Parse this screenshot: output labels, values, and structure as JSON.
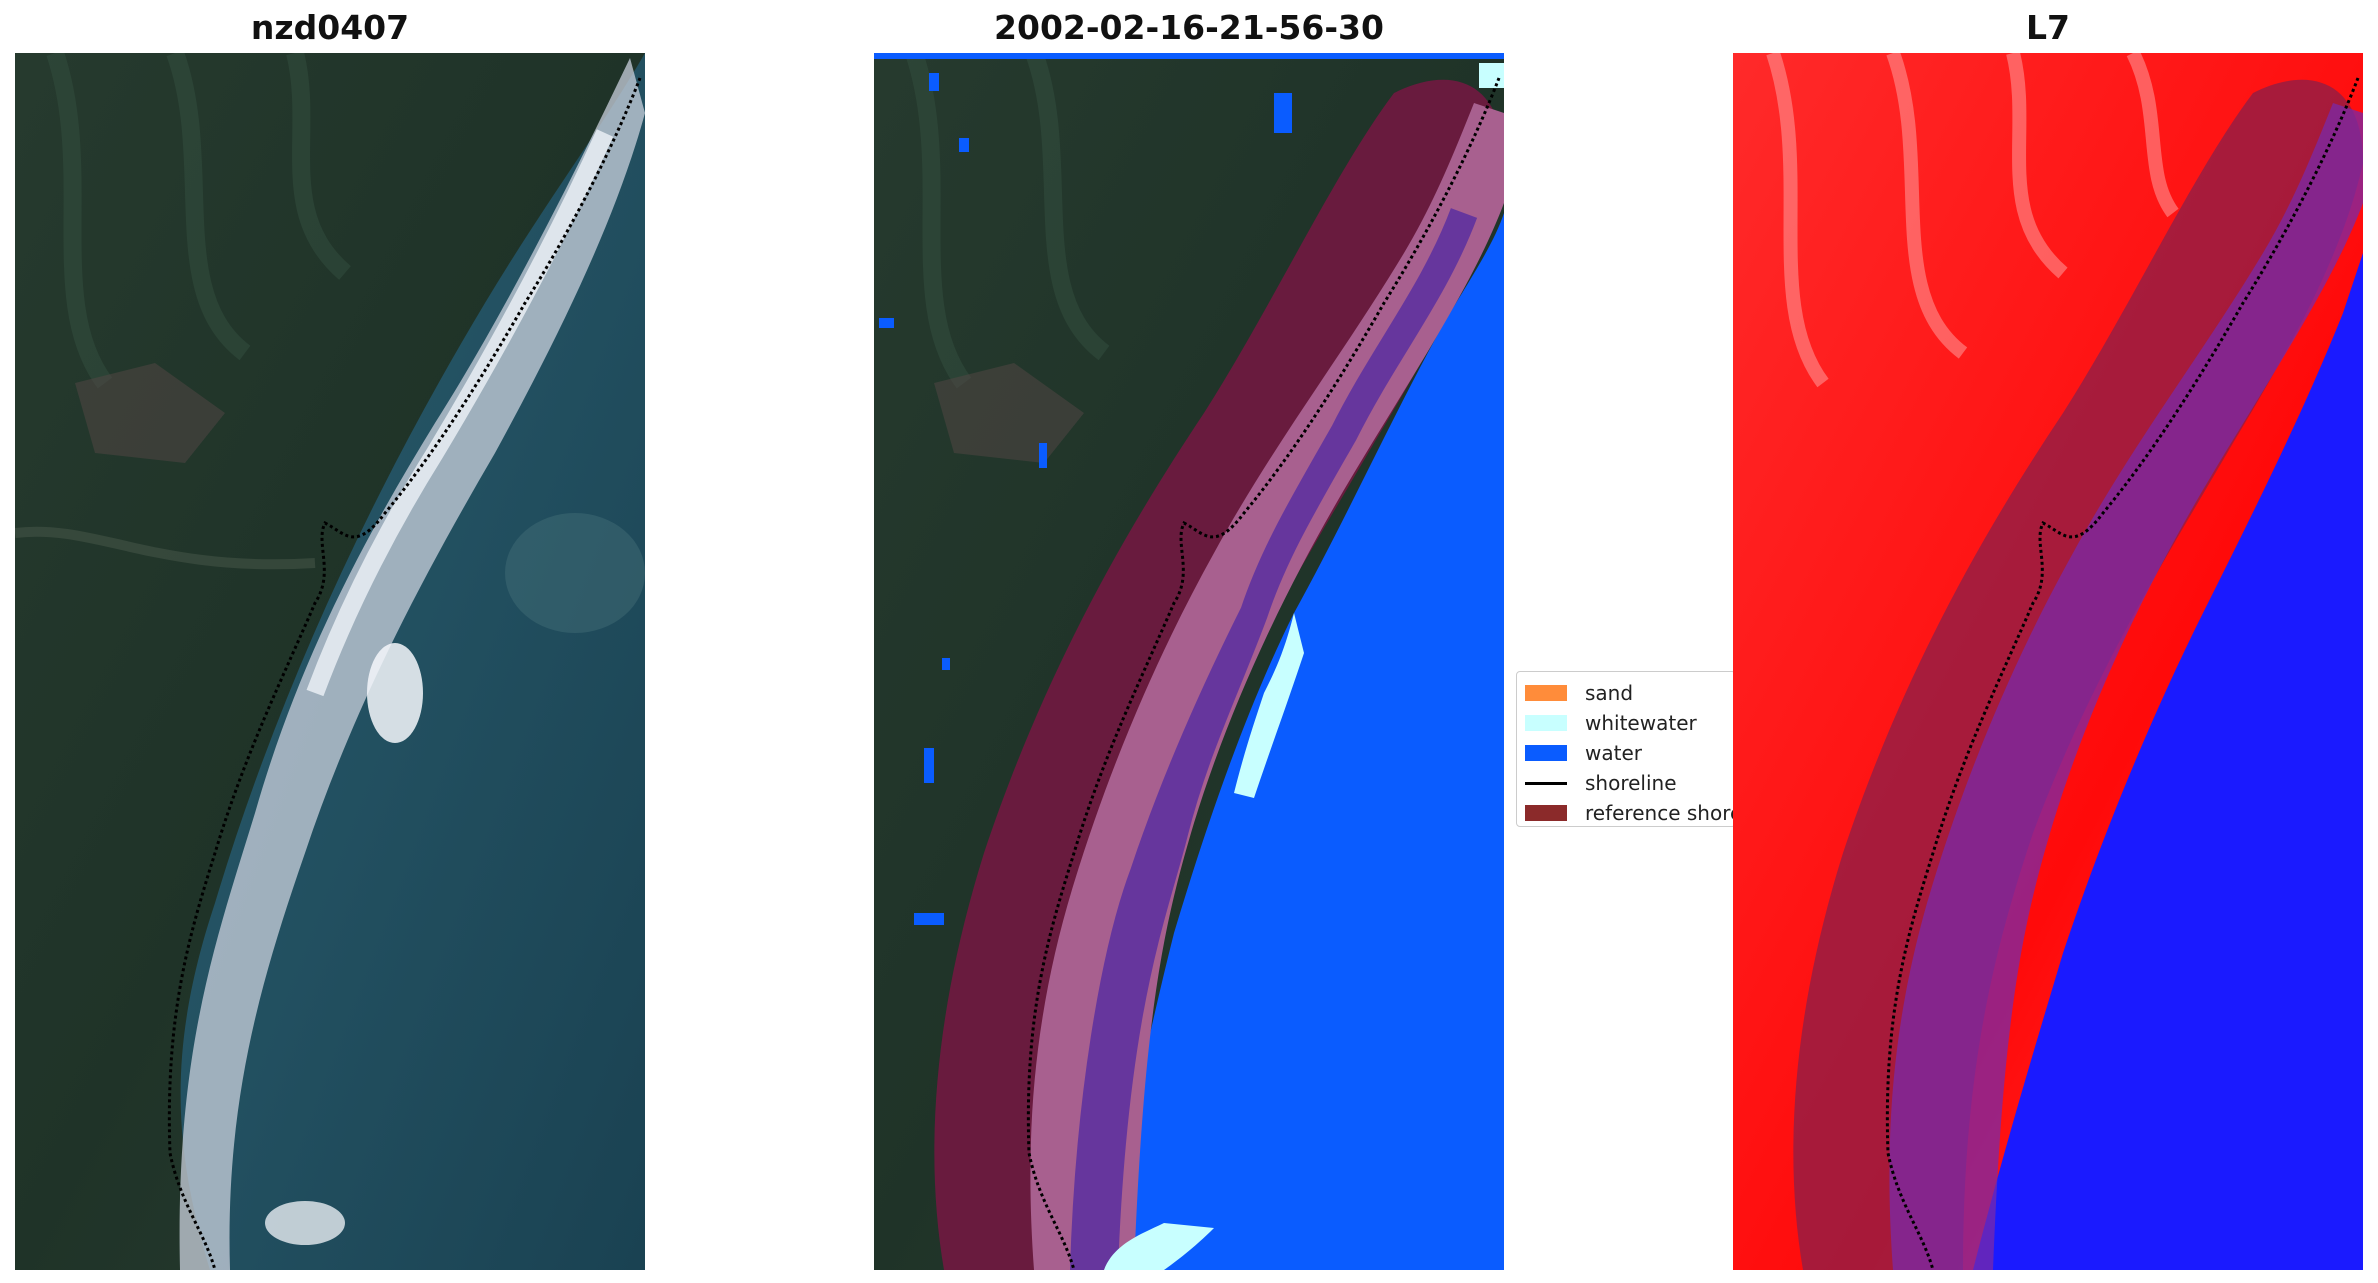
{
  "panels": {
    "rgb": {
      "title": "nzd0407"
    },
    "classified": {
      "title": "2002-02-16-21-56-30"
    },
    "index": {
      "title": "L7"
    }
  },
  "legend": {
    "items": [
      {
        "label": "sand",
        "color": "#ff8c3a",
        "kind": "patch"
      },
      {
        "label": "whitewater",
        "color": "#c8ffff",
        "kind": "patch"
      },
      {
        "label": "water",
        "color": "#0a5cff",
        "kind": "patch"
      },
      {
        "label": "shoreline",
        "color": "#000000",
        "kind": "line"
      },
      {
        "label": "reference shoreline buffer",
        "color": "#8b2a2a",
        "kind": "patch"
      }
    ]
  },
  "colors": {
    "vegetation_dark": "#1f3328",
    "vegetation_mid": "#2c4536",
    "ocean": "#1e4a5c",
    "surf": "#d8dde6",
    "water_class": "#0a5cff",
    "buffer": "#6e1a3f",
    "buffer_inner": "#a8608f",
    "index_red": "#ff1a1a",
    "index_blue": "#1a1aff"
  }
}
